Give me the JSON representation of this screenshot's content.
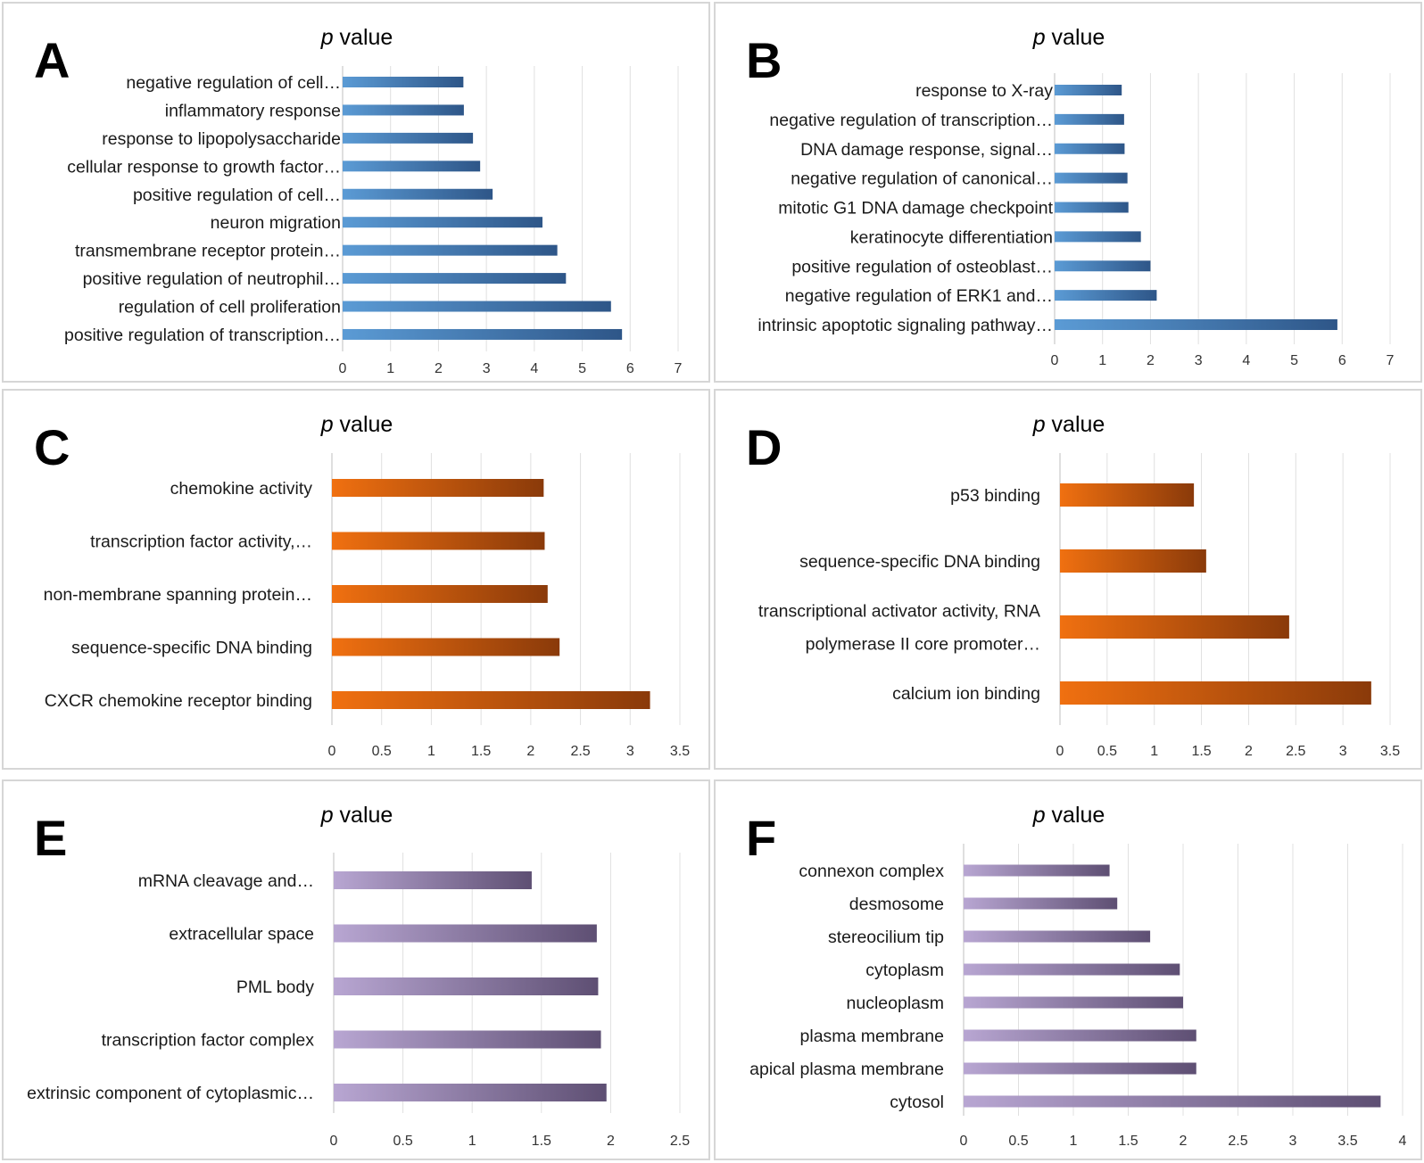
{
  "chart_data": [
    {
      "panel": "A",
      "type": "bar",
      "orientation": "horizontal",
      "title_italic": "p",
      "title_rest": "value",
      "color_start": "#5b9bd5",
      "color_end": "#2e5688",
      "xlim": [
        0,
        7
      ],
      "ticks": [
        0,
        1,
        2,
        3,
        4,
        5,
        6,
        7
      ],
      "categories": [
        "negative regulation of cell…",
        "inflammatory response",
        "response to lipopolysaccharide",
        "cellular response to growth factor…",
        "positive regulation of cell…",
        "neuron migration",
        "transmembrane receptor protein…",
        "positive regulation of neutrophil…",
        "regulation of cell proliferation",
        "positive regulation of transcription…"
      ],
      "values": [
        2.52,
        2.53,
        2.72,
        2.87,
        3.13,
        4.17,
        4.48,
        4.66,
        5.6,
        5.83
      ]
    },
    {
      "panel": "B",
      "type": "bar",
      "orientation": "horizontal",
      "title_italic": "p",
      "title_rest": "value",
      "color_start": "#5b9bd5",
      "color_end": "#2e5688",
      "xlim": [
        0,
        7
      ],
      "ticks": [
        0,
        1,
        2,
        3,
        4,
        5,
        6,
        7
      ],
      "categories": [
        "response to X-ray",
        "negative regulation of transcription…",
        "DNA damage response, signal…",
        "negative regulation of canonical…",
        "mitotic G1 DNA damage checkpoint",
        "keratinocyte differentiation",
        "positive regulation of osteoblast…",
        "negative regulation of ERK1 and…",
        "intrinsic apoptotic signaling pathway…"
      ],
      "values": [
        1.4,
        1.45,
        1.46,
        1.52,
        1.54,
        1.8,
        2.0,
        2.13,
        5.9
      ]
    },
    {
      "panel": "C",
      "type": "bar",
      "orientation": "horizontal",
      "title_italic": "p",
      "title_rest": "value",
      "color_start": "#f07010",
      "color_end": "#8a3a0a",
      "xlim": [
        0,
        3.5
      ],
      "ticks": [
        0,
        0.5,
        1,
        1.5,
        2,
        2.5,
        3,
        3.5
      ],
      "categories": [
        "chemokine activity",
        "transcription factor activity,…",
        "non-membrane spanning protein…",
        "sequence-specific DNA binding",
        "CXCR chemokine receptor binding"
      ],
      "values": [
        2.13,
        2.14,
        2.17,
        2.29,
        3.2
      ]
    },
    {
      "panel": "D",
      "type": "bar",
      "orientation": "horizontal",
      "title_italic": "p",
      "title_rest": "value",
      "color_start": "#f07010",
      "color_end": "#8a3a0a",
      "xlim": [
        0,
        3.5
      ],
      "ticks": [
        0,
        0.5,
        1,
        1.5,
        2,
        2.5,
        3,
        3.5
      ],
      "categories": [
        "p53 binding",
        "sequence-specific DNA binding",
        [
          "transcriptional activator activity, RNA",
          "polymerase II core promoter…"
        ],
        "calcium ion binding"
      ],
      "values": [
        1.42,
        1.55,
        2.43,
        3.3
      ]
    },
    {
      "panel": "E",
      "type": "bar",
      "orientation": "horizontal",
      "title_italic": "p",
      "title_rest": "value",
      "color_start": "#b8a6d2",
      "color_end": "#5e4f73",
      "xlim": [
        0,
        2.5
      ],
      "ticks": [
        0,
        0.5,
        1,
        1.5,
        2,
        2.5
      ],
      "categories": [
        "mRNA cleavage and…",
        "extracellular space",
        "PML body",
        "transcription factor complex",
        "extrinsic component of cytoplasmic…"
      ],
      "values": [
        1.43,
        1.9,
        1.91,
        1.93,
        1.97
      ]
    },
    {
      "panel": "F",
      "type": "bar",
      "orientation": "horizontal",
      "title_italic": "p",
      "title_rest": "value",
      "color_start": "#b8a6d2",
      "color_end": "#5e4f73",
      "xlim": [
        0,
        4
      ],
      "ticks": [
        0,
        0.5,
        1,
        1.5,
        2,
        2.5,
        3,
        3.5,
        4
      ],
      "categories": [
        "connexon complex",
        "desmosome",
        "stereocilium tip",
        "cytoplasm",
        "nucleoplasm",
        "plasma membrane",
        "apical plasma membrane",
        "cytosol"
      ],
      "values": [
        1.33,
        1.4,
        1.7,
        1.97,
        2.0,
        2.12,
        2.12,
        3.8
      ]
    }
  ]
}
